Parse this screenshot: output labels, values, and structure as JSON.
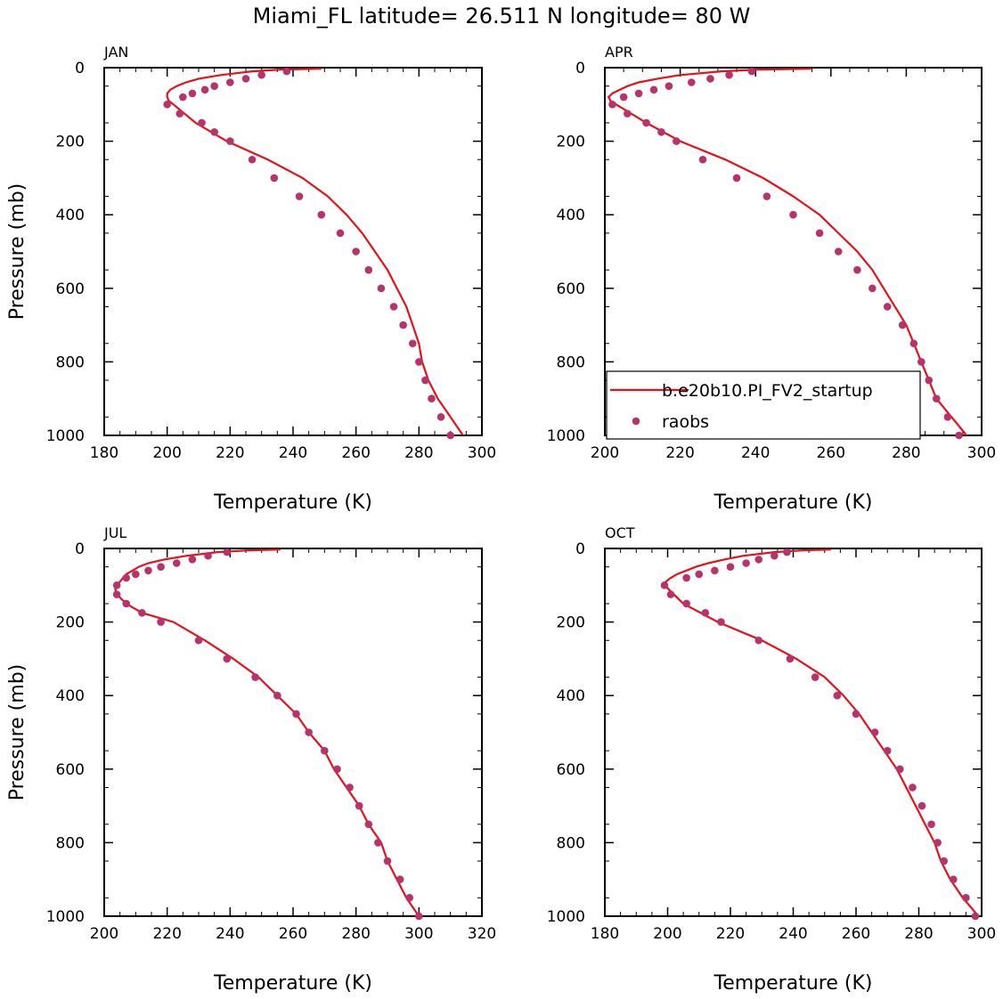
{
  "figure": {
    "title": "Miami_FL  latitude= 26.511 N longitude= 80 W"
  },
  "colors": {
    "model": "#e8101a",
    "obs": "#b8336a",
    "axis": "#000000"
  },
  "legend": {
    "model_label": "b.e20b10.PI_FV2_startup",
    "obs_label": "raobs",
    "placement": "lower-right of APR panel"
  },
  "chart_data": [
    {
      "type": "line",
      "title": "JAN",
      "xlabel": "Temperature (K)",
      "ylabel": "Pressure (mb)",
      "xlim": [
        180,
        300
      ],
      "xticks": [
        180,
        200,
        220,
        240,
        260,
        280,
        300
      ],
      "ylim": [
        0,
        1000
      ],
      "yticks": [
        0,
        200,
        400,
        600,
        800,
        1000
      ],
      "y_inverted": true,
      "legend_shown": false,
      "model": {
        "p": [
          3,
          5,
          10,
          20,
          30,
          40,
          50,
          60,
          70,
          80,
          90,
          100,
          150,
          200,
          250,
          300,
          350,
          400,
          450,
          500,
          550,
          600,
          650,
          700,
          750,
          800,
          850,
          900,
          950,
          1000,
          1010
        ],
        "t": [
          249,
          236,
          227,
          217,
          210,
          206,
          203,
          201,
          200,
          200,
          200.5,
          202,
          209,
          219,
          232,
          243,
          251,
          257,
          262,
          266,
          270,
          273,
          276,
          278,
          280,
          281,
          283,
          286,
          290,
          294,
          295
        ]
      },
      "obs": {
        "p": [
          10,
          20,
          30,
          40,
          50,
          60,
          70,
          80,
          100,
          125,
          150,
          175,
          200,
          250,
          300,
          350,
          400,
          450,
          500,
          550,
          600,
          650,
          700,
          750,
          800,
          850,
          900,
          950,
          1000
        ],
        "t": [
          238,
          230,
          225,
          220,
          215,
          212,
          208,
          205,
          200,
          204,
          211,
          215,
          220,
          227,
          234,
          242,
          249,
          255,
          260,
          264,
          268,
          272,
          275,
          278,
          280,
          282,
          284,
          287,
          290
        ]
      }
    },
    {
      "type": "line",
      "title": "APR",
      "xlabel": "Temperature (K)",
      "ylabel": "",
      "xlim": [
        200,
        300
      ],
      "xticks": [
        200,
        220,
        240,
        260,
        280,
        300
      ],
      "ylim": [
        0,
        1000
      ],
      "yticks": [
        0,
        200,
        400,
        600,
        800,
        1000
      ],
      "y_inverted": true,
      "legend_shown": true,
      "model": {
        "p": [
          3,
          5,
          10,
          20,
          30,
          40,
          50,
          60,
          70,
          80,
          90,
          100,
          150,
          200,
          250,
          300,
          350,
          400,
          450,
          500,
          550,
          600,
          650,
          700,
          750,
          800,
          850,
          900,
          950,
          1000,
          1010
        ],
        "t": [
          255,
          241,
          231,
          220,
          214,
          209,
          206,
          204,
          202,
          201,
          201.5,
          203,
          211,
          220,
          232,
          242,
          250,
          257,
          262,
          267,
          271,
          274,
          277,
          280,
          282,
          284,
          286,
          288,
          292,
          296,
          297
        ]
      },
      "obs": {
        "p": [
          10,
          20,
          30,
          40,
          50,
          60,
          70,
          80,
          100,
          125,
          150,
          175,
          200,
          250,
          300,
          350,
          400,
          450,
          500,
          550,
          600,
          650,
          700,
          750,
          800,
          850,
          900,
          950,
          1000
        ],
        "t": [
          239,
          233,
          228,
          223,
          217,
          213,
          209,
          205,
          202,
          206,
          211,
          215,
          219,
          226,
          235,
          243,
          250,
          257,
          262,
          267,
          271,
          275,
          279,
          282,
          284,
          286,
          288,
          291,
          294
        ]
      }
    },
    {
      "type": "line",
      "title": "JUL",
      "xlabel": "Temperature (K)",
      "ylabel": "Pressure (mb)",
      "xlim": [
        200,
        320
      ],
      "xticks": [
        200,
        220,
        240,
        260,
        280,
        300,
        320
      ],
      "ylim": [
        0,
        1000
      ],
      "yticks": [
        0,
        200,
        400,
        600,
        800,
        1000
      ],
      "y_inverted": true,
      "legend_shown": false,
      "model": {
        "p": [
          3,
          5,
          10,
          20,
          30,
          40,
          50,
          60,
          70,
          80,
          90,
          100,
          110,
          125,
          150,
          175,
          200,
          250,
          300,
          350,
          400,
          450,
          500,
          550,
          600,
          650,
          700,
          750,
          800,
          850,
          900,
          950,
          1000,
          1010
        ],
        "t": [
          256,
          246,
          236,
          226,
          219,
          214,
          211,
          209,
          207,
          206,
          205,
          204,
          203.5,
          204,
          207,
          212,
          222,
          232,
          241,
          249,
          255,
          261,
          265,
          270,
          273,
          277,
          281,
          284,
          288,
          290,
          293,
          296,
          300,
          301
        ]
      },
      "obs": {
        "p": [
          10,
          20,
          30,
          40,
          50,
          60,
          70,
          80,
          100,
          125,
          150,
          175,
          200,
          250,
          300,
          350,
          400,
          450,
          500,
          550,
          600,
          650,
          700,
          750,
          800,
          850,
          900,
          950,
          1000
        ],
        "t": [
          239,
          233,
          228,
          223,
          218,
          214,
          210,
          207,
          204,
          204,
          207,
          212,
          218,
          230,
          239,
          248,
          255,
          261,
          265,
          270,
          274,
          278,
          281,
          284,
          287,
          290,
          294,
          297,
          300
        ]
      }
    },
    {
      "type": "line",
      "title": "OCT",
      "xlabel": "Temperature (K)",
      "ylabel": "",
      "xlim": [
        180,
        300
      ],
      "xticks": [
        180,
        200,
        220,
        240,
        260,
        280,
        300
      ],
      "ylim": [
        0,
        1000
      ],
      "yticks": [
        0,
        200,
        400,
        600,
        800,
        1000
      ],
      "y_inverted": true,
      "legend_shown": false,
      "model": {
        "p": [
          3,
          5,
          10,
          20,
          30,
          40,
          50,
          60,
          70,
          80,
          90,
          100,
          150,
          200,
          250,
          300,
          350,
          400,
          450,
          500,
          550,
          600,
          650,
          700,
          750,
          800,
          850,
          900,
          950,
          1000
        ],
        "t": [
          252,
          243,
          234,
          224,
          218,
          213,
          209,
          206,
          203,
          201,
          199.5,
          199,
          205,
          216,
          230,
          241,
          250,
          256,
          261,
          265,
          269,
          273,
          276,
          279,
          282,
          285,
          287,
          290,
          294,
          299
        ]
      },
      "obs": {
        "p": [
          10,
          20,
          30,
          40,
          50,
          60,
          70,
          80,
          100,
          125,
          150,
          175,
          200,
          250,
          300,
          350,
          400,
          450,
          500,
          550,
          600,
          650,
          700,
          750,
          800,
          850,
          900,
          950,
          1000
        ],
        "t": [
          238,
          234,
          229,
          225,
          220,
          215,
          210,
          206,
          199,
          201,
          206,
          212,
          217,
          229,
          239,
          247,
          254,
          260,
          266,
          270,
          274,
          278,
          281,
          284,
          286,
          288,
          291,
          295,
          298
        ]
      }
    }
  ]
}
